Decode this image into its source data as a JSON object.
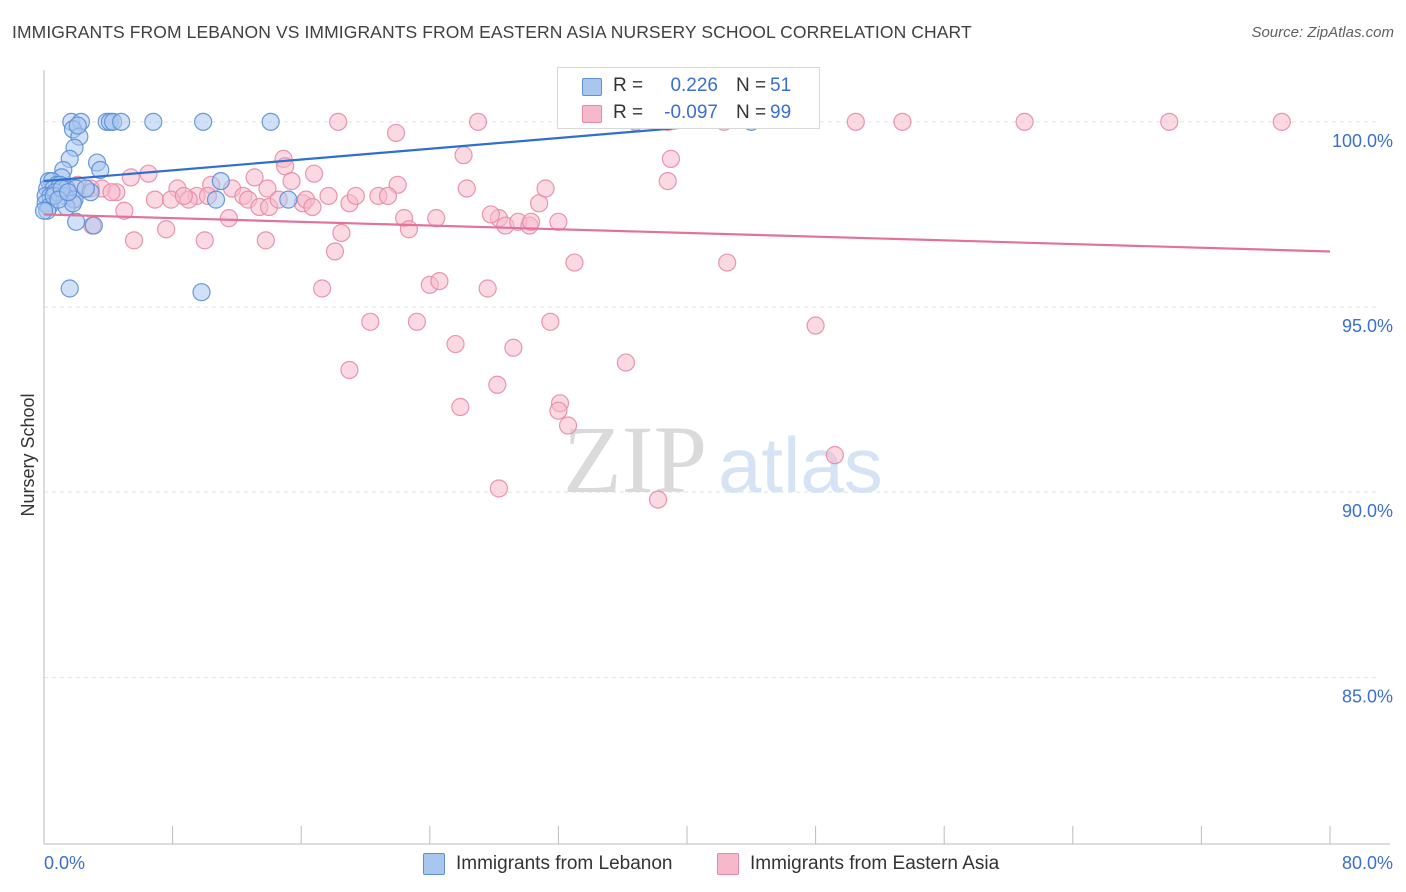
{
  "header": {
    "title": "IMMIGRANTS FROM LEBANON VS IMMIGRANTS FROM EASTERN ASIA NURSERY SCHOOL CORRELATION CHART",
    "source": "Source: ZipAtlas.com"
  },
  "watermark": {
    "left": "ZIP",
    "right": "atlas"
  },
  "colors": {
    "blue_fill": "#a9c6ee",
    "blue_stroke": "#5b8fd6",
    "blue_line": "#2e6fd0",
    "pink_fill": "#f6b9cb",
    "pink_stroke": "#e889a6",
    "pink_line": "#e2729a",
    "tick_label": "#3a6fd0",
    "grid": "#e2e2e2"
  },
  "legend_top": {
    "rows": [
      {
        "r_label": "R =",
        "r_value": "0.226",
        "n_label": "N =",
        "n_value": "51"
      },
      {
        "r_label": "R =",
        "r_value": "-0.097",
        "n_label": "N =",
        "n_value": "99"
      }
    ]
  },
  "legend_bottom": {
    "items": [
      {
        "label": "Immigrants from Lebanon"
      },
      {
        "label": "Immigrants from Eastern Asia"
      }
    ]
  },
  "chart_data": {
    "type": "scatter",
    "title": "IMMIGRANTS FROM LEBANON VS IMMIGRANTS FROM EASTERN ASIA NURSERY SCHOOL CORRELATION CHART",
    "xlabel": "",
    "ylabel": "Nursery School",
    "xlim": [
      0,
      80
    ],
    "ylim": [
      80.5,
      101.4
    ],
    "x_tick_labels": [
      "0.0%",
      "80.0%"
    ],
    "y_ticks": [
      85,
      90,
      95,
      100
    ],
    "y_tick_labels": [
      "85.0%",
      "90.0%",
      "95.0%",
      "100.0%"
    ],
    "grid": true,
    "series": [
      {
        "name": "Immigrants from Lebanon",
        "color": "blue",
        "r": 0.226,
        "n": 51,
        "trend": {
          "x": [
            0,
            44
          ],
          "y": [
            98.4,
            100.0
          ]
        },
        "points": [
          [
            1.7,
            100.0
          ],
          [
            2.3,
            100.0
          ],
          [
            3.9,
            100.0
          ],
          [
            4.1,
            100.0
          ],
          [
            4.3,
            100.0
          ],
          [
            4.8,
            100.0
          ],
          [
            6.8,
            100.0
          ],
          [
            9.9,
            100.0
          ],
          [
            14.1,
            100.0
          ],
          [
            1.8,
            99.8
          ],
          [
            2.2,
            99.6
          ],
          [
            2.1,
            99.9
          ],
          [
            1.9,
            99.3
          ],
          [
            1.6,
            99.0
          ],
          [
            3.3,
            98.9
          ],
          [
            3.5,
            98.7
          ],
          [
            1.2,
            98.7
          ],
          [
            1.1,
            98.5
          ],
          [
            0.3,
            98.4
          ],
          [
            0.5,
            98.4
          ],
          [
            0.8,
            98.3
          ],
          [
            0.2,
            98.2
          ],
          [
            0.6,
            98.2
          ],
          [
            1.0,
            98.3
          ],
          [
            1.4,
            98.2
          ],
          [
            2.0,
            98.2
          ],
          [
            0.1,
            98.0
          ],
          [
            0.4,
            98.0
          ],
          [
            0.7,
            98.1
          ],
          [
            1.3,
            98.0
          ],
          [
            1.9,
            97.9
          ],
          [
            2.9,
            98.1
          ],
          [
            0.1,
            97.8
          ],
          [
            0.3,
            97.7
          ],
          [
            1.4,
            97.7
          ],
          [
            1.8,
            97.8
          ],
          [
            0.2,
            97.6
          ],
          [
            2.0,
            97.3
          ],
          [
            3.1,
            97.2
          ],
          [
            10.7,
            97.9
          ],
          [
            11.0,
            98.4
          ],
          [
            15.2,
            97.9
          ],
          [
            0.6,
            98.0
          ],
          [
            1.1,
            98.2
          ],
          [
            0.9,
            97.9
          ],
          [
            2.6,
            98.2
          ],
          [
            1.5,
            98.1
          ],
          [
            1.6,
            95.5
          ],
          [
            9.8,
            95.4
          ],
          [
            44.0,
            100.0
          ],
          [
            0.0,
            97.6
          ]
        ]
      },
      {
        "name": "Immigrants from Eastern Asia",
        "color": "pink",
        "r": -0.097,
        "n": 99,
        "trend": {
          "x": [
            0,
            80
          ],
          "y": [
            97.5,
            96.5
          ]
        },
        "points": [
          [
            18.3,
            100.0
          ],
          [
            27.0,
            100.0
          ],
          [
            36.8,
            100.0
          ],
          [
            42.3,
            100.0
          ],
          [
            50.5,
            100.0
          ],
          [
            53.4,
            100.0
          ],
          [
            61.0,
            100.0
          ],
          [
            70.0,
            100.0
          ],
          [
            77.0,
            100.0
          ],
          [
            21.9,
            99.7
          ],
          [
            14.9,
            99.0
          ],
          [
            26.1,
            99.1
          ],
          [
            39.0,
            99.0
          ],
          [
            15.0,
            98.8
          ],
          [
            16.8,
            98.6
          ],
          [
            13.1,
            98.5
          ],
          [
            15.4,
            98.4
          ],
          [
            6.5,
            98.6
          ],
          [
            5.4,
            98.5
          ],
          [
            38.8,
            98.4
          ],
          [
            10.4,
            98.3
          ],
          [
            11.7,
            98.2
          ],
          [
            22.0,
            98.3
          ],
          [
            8.3,
            98.2
          ],
          [
            3.6,
            98.2
          ],
          [
            4.5,
            98.1
          ],
          [
            2.9,
            98.2
          ],
          [
            1.5,
            98.1
          ],
          [
            9.5,
            98.0
          ],
          [
            12.4,
            98.0
          ],
          [
            17.7,
            98.0
          ],
          [
            20.8,
            98.0
          ],
          [
            21.4,
            98.0
          ],
          [
            6.9,
            97.9
          ],
          [
            7.9,
            97.9
          ],
          [
            9.0,
            97.9
          ],
          [
            12.7,
            97.9
          ],
          [
            16.1,
            97.8
          ],
          [
            16.3,
            97.9
          ],
          [
            19.0,
            97.8
          ],
          [
            13.4,
            97.7
          ],
          [
            14.0,
            97.7
          ],
          [
            16.7,
            97.7
          ],
          [
            30.8,
            97.8
          ],
          [
            5.0,
            97.6
          ],
          [
            11.5,
            97.4
          ],
          [
            22.4,
            97.4
          ],
          [
            24.4,
            97.4
          ],
          [
            28.3,
            97.4
          ],
          [
            22.7,
            97.1
          ],
          [
            28.7,
            97.2
          ],
          [
            29.5,
            97.3
          ],
          [
            30.2,
            97.2
          ],
          [
            30.3,
            97.3
          ],
          [
            32.0,
            97.3
          ],
          [
            7.6,
            97.1
          ],
          [
            18.5,
            97.0
          ],
          [
            5.6,
            96.8
          ],
          [
            10.0,
            96.8
          ],
          [
            13.8,
            96.8
          ],
          [
            18.1,
            96.5
          ],
          [
            33.0,
            96.2
          ],
          [
            42.5,
            96.2
          ],
          [
            24.0,
            95.6
          ],
          [
            24.6,
            95.7
          ],
          [
            27.6,
            95.5
          ],
          [
            17.3,
            95.5
          ],
          [
            20.3,
            94.6
          ],
          [
            23.2,
            94.6
          ],
          [
            31.5,
            94.6
          ],
          [
            48.0,
            94.5
          ],
          [
            25.6,
            94.0
          ],
          [
            29.2,
            93.9
          ],
          [
            36.2,
            93.5
          ],
          [
            19.0,
            93.3
          ],
          [
            28.2,
            92.9
          ],
          [
            32.1,
            92.4
          ],
          [
            32.0,
            92.2
          ],
          [
            25.9,
            92.3
          ],
          [
            32.6,
            91.8
          ],
          [
            49.2,
            91.0
          ],
          [
            28.3,
            90.1
          ],
          [
            38.2,
            89.8
          ],
          [
            38.8,
            100.0
          ],
          [
            3.0,
            97.2
          ],
          [
            8.7,
            98.0
          ],
          [
            10.2,
            98.0
          ],
          [
            13.9,
            98.2
          ],
          [
            19.4,
            98.0
          ],
          [
            26.3,
            98.2
          ],
          [
            27.8,
            97.5
          ],
          [
            31.2,
            98.2
          ],
          [
            2.1,
            98.3
          ],
          [
            1.0,
            98.1
          ],
          [
            0.6,
            98.0
          ],
          [
            0.4,
            98.2
          ],
          [
            14.6,
            97.9
          ],
          [
            1.8,
            97.9
          ],
          [
            4.2,
            98.1
          ]
        ]
      }
    ]
  }
}
